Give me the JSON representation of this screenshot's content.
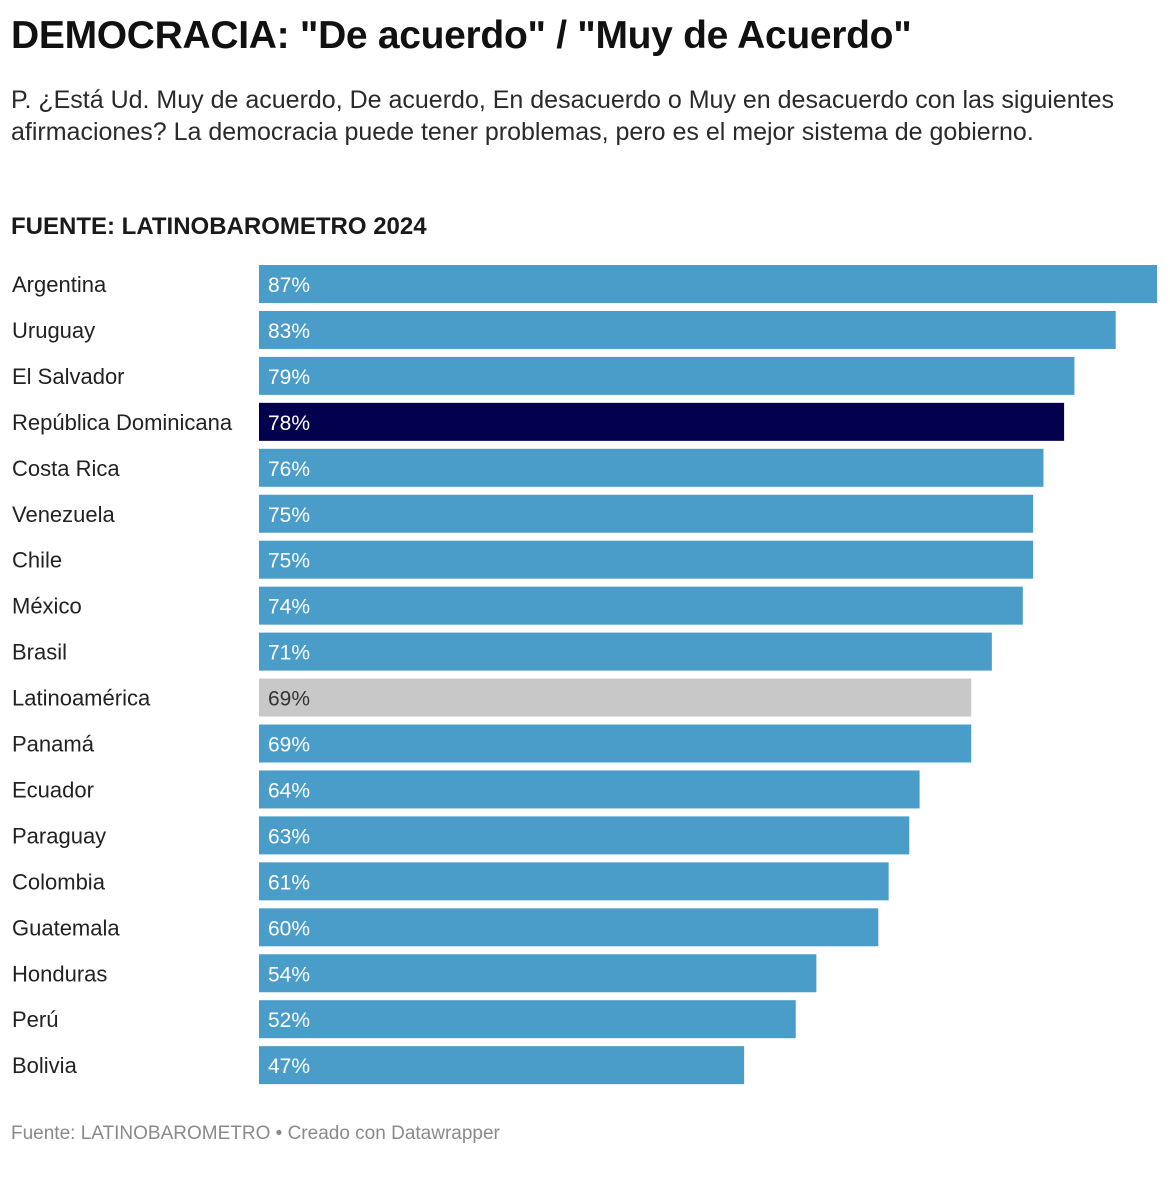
{
  "title": "DEMOCRACIA: \"De acuerdo\" / \"Muy de Acuerdo\"",
  "subtitle": "P. ¿Está Ud. Muy de acuerdo, De acuerdo, En desacuerdo o Muy en desacuerdo con las siguientes afirmaciones? La democracia puede tener problemas, pero es el mejor sistema de gobierno.",
  "source_heading": "FUENTE: LATINOBAROMETRO 2024",
  "footer": "Fuente: LATINOBAROMETRO • Creado con Datawrapper",
  "colors": {
    "default": "#4a9dc9",
    "highlight": "#03004e",
    "average": "#c8c8c8",
    "label_light": "#ffffff",
    "label_dark": "#333333"
  },
  "chart_data": {
    "type": "bar",
    "orientation": "horizontal",
    "categories": [
      "Argentina",
      "Uruguay",
      "El Salvador",
      "República Dominicana",
      "Costa Rica",
      "Venezuela",
      "Chile",
      "México",
      "Brasil",
      "Latinoamérica",
      "Panamá",
      "Ecuador",
      "Paraguay",
      "Colombia",
      "Guatemala",
      "Honduras",
      "Perú",
      "Bolivia"
    ],
    "values": [
      87,
      83,
      79,
      78,
      76,
      75,
      75,
      74,
      71,
      69,
      69,
      64,
      63,
      61,
      60,
      54,
      52,
      47
    ],
    "value_labels": [
      "87%",
      "83%",
      "79%",
      "78%",
      "76%",
      "75%",
      "75%",
      "74%",
      "71%",
      "69%",
      "69%",
      "64%",
      "63%",
      "61%",
      "60%",
      "54%",
      "52%",
      "47%"
    ],
    "styles": [
      "default",
      "default",
      "default",
      "highlight",
      "default",
      "default",
      "default",
      "default",
      "default",
      "average",
      "default",
      "default",
      "default",
      "default",
      "default",
      "default",
      "default",
      "default"
    ],
    "xlim": [
      0,
      87
    ],
    "unit": "%"
  }
}
